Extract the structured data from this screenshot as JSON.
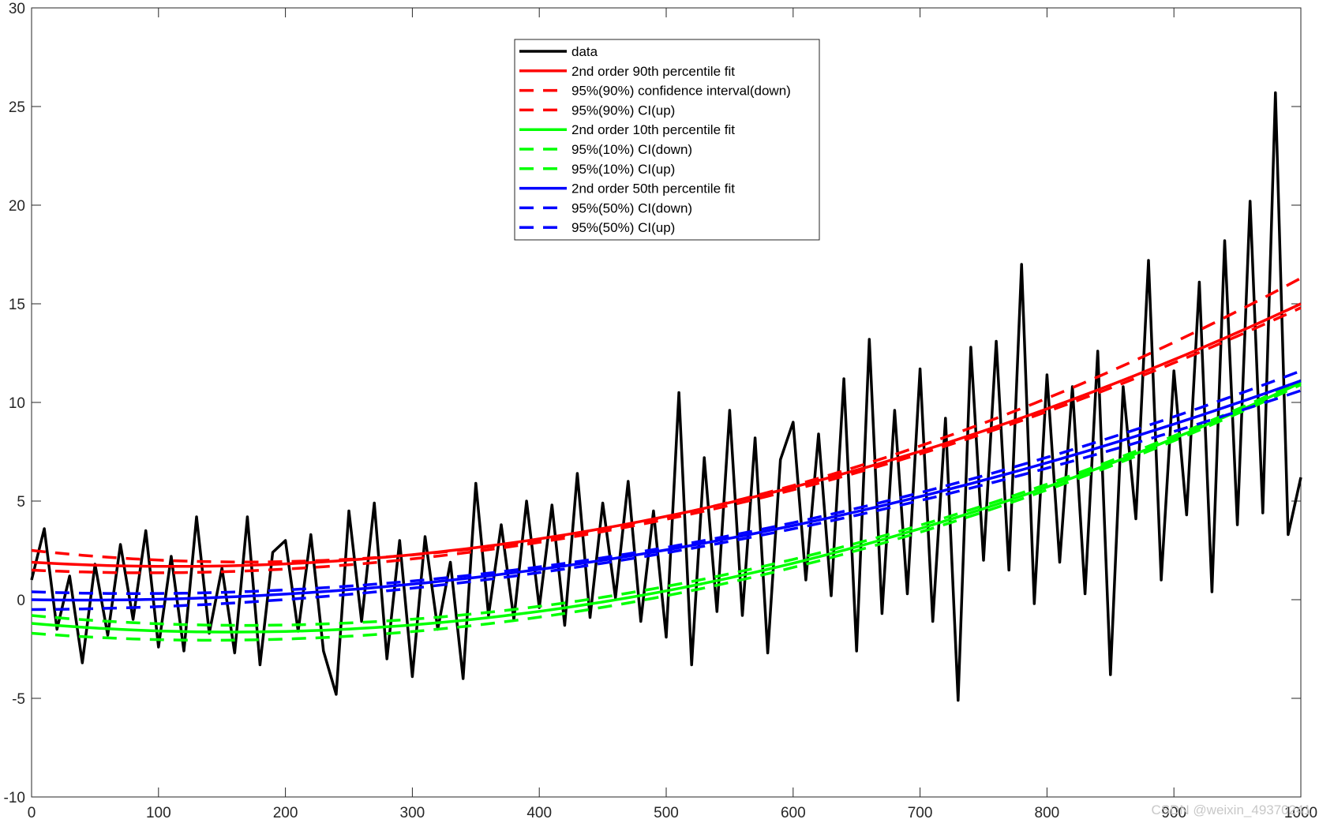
{
  "chart_data": {
    "type": "line",
    "title": "",
    "xlabel": "",
    "ylabel": "",
    "xlim": [
      0,
      1000
    ],
    "ylim": [
      -10,
      30
    ],
    "xticks": [
      0,
      100,
      200,
      300,
      400,
      500,
      600,
      700,
      800,
      900,
      1000
    ],
    "yticks": [
      -10,
      -5,
      0,
      5,
      10,
      15,
      20,
      25,
      30
    ],
    "xtick_labels": [
      "0",
      "100",
      "200",
      "300",
      "400",
      "500",
      "600",
      "700",
      "800",
      "900",
      "1000"
    ],
    "ytick_labels": [
      "-10",
      "-5",
      "0",
      "5",
      "10",
      "15",
      "20",
      "25",
      "30"
    ],
    "grid": false,
    "legend_position": "top-center",
    "data_series": {
      "name": "data",
      "color": "#000000",
      "x": [
        0,
        10,
        20,
        30,
        40,
        50,
        60,
        70,
        80,
        90,
        100,
        110,
        120,
        130,
        140,
        150,
        160,
        170,
        180,
        190,
        200,
        210,
        220,
        230,
        240,
        250,
        260,
        270,
        280,
        290,
        300,
        310,
        320,
        330,
        340,
        350,
        360,
        370,
        380,
        390,
        400,
        410,
        420,
        430,
        440,
        450,
        460,
        470,
        480,
        490,
        500,
        510,
        520,
        530,
        540,
        550,
        560,
        570,
        580,
        590,
        600,
        610,
        620,
        630,
        640,
        650,
        660,
        670,
        680,
        690,
        700,
        710,
        720,
        730,
        740,
        750,
        760,
        770,
        780,
        790,
        800,
        810,
        820,
        830,
        840,
        850,
        860,
        870,
        880,
        890,
        900,
        910,
        920,
        930,
        940,
        950,
        960,
        970,
        980,
        990,
        1000
      ],
      "y": [
        1.0,
        3.6,
        -1.5,
        1.2,
        -3.2,
        1.8,
        -1.8,
        2.8,
        -1.0,
        3.5,
        -2.4,
        2.2,
        -2.6,
        4.2,
        -1.7,
        1.6,
        -2.7,
        4.2,
        -3.3,
        2.4,
        3.0,
        -1.6,
        3.3,
        -2.6,
        -4.8,
        4.5,
        -1.1,
        4.9,
        -3.0,
        3.0,
        -3.9,
        3.2,
        -1.5,
        1.9,
        -4.0,
        5.9,
        -0.8,
        3.8,
        -1.0,
        5.0,
        -0.4,
        4.8,
        -1.3,
        6.4,
        -0.9,
        4.9,
        0.1,
        6.0,
        -1.1,
        4.5,
        -1.9,
        10.5,
        -3.3,
        7.2,
        -0.6,
        9.6,
        -0.8,
        8.2,
        -2.7,
        7.1,
        9.0,
        1.0,
        8.4,
        0.2,
        11.2,
        -2.6,
        13.2,
        -0.7,
        9.6,
        0.3,
        11.7,
        -1.1,
        9.2,
        -5.1,
        12.8,
        2.0,
        13.1,
        1.5,
        17.0,
        -0.2,
        11.4,
        1.9,
        10.8,
        0.3,
        12.6,
        -3.8,
        10.8,
        4.1,
        17.2,
        1.0,
        11.6,
        4.3,
        16.1,
        0.4,
        18.2,
        3.8,
        20.2,
        4.4,
        25.7,
        3.3,
        6.2
      ]
    },
    "fit_series": [
      {
        "name": "2nd order 90th percentile fit",
        "color": "#ff0000",
        "dash": false,
        "coeffs": [
          1.9,
          0,
          15.0
        ]
      },
      {
        "name": "95%(90%) confidence interval(down)",
        "color": "#ff0000",
        "dash": true,
        "coeffs": [
          1.5,
          0,
          14.8
        ]
      },
      {
        "name": "95%(90%) CI(up)",
        "color": "#ff0000",
        "dash": true,
        "coeffs": [
          2.5,
          -1.0,
          16.3
        ]
      },
      {
        "name": "2nd order 10th percentile fit",
        "color": "#00ff00",
        "dash": false,
        "coeffs": [
          -1.2,
          -4.0,
          11.0
        ]
      },
      {
        "name": "95%(10%) CI(down)",
        "color": "#00ff00",
        "dash": true,
        "coeffs": [
          -1.7,
          -4.2,
          10.9
        ]
      },
      {
        "name": "95%(10%) CI(up)",
        "color": "#00ff00",
        "dash": true,
        "coeffs": [
          -0.8,
          -3.8,
          11.1
        ]
      },
      {
        "name": "2nd order 50th percentile fit",
        "color": "#0000ff",
        "dash": false,
        "coeffs": [
          0.0,
          -0.5,
          11.1
        ]
      },
      {
        "name": "95%(50%) CI(down)",
        "color": "#0000ff",
        "dash": true,
        "coeffs": [
          -0.5,
          -0.3,
          10.6
        ]
      },
      {
        "name": "95%(50%) CI(up)",
        "color": "#0000ff",
        "dash": true,
        "coeffs": [
          0.4,
          -0.7,
          11.6
        ]
      }
    ],
    "legend": [
      "data",
      "2nd order 90th percentile fit",
      "95%(90%) confidence interval(down)",
      "95%(90%) CI(up)",
      "2nd order 10th percentile fit",
      "95%(10%) CI(down)",
      "95%(10%) CI(up)",
      "2nd order 50th percentile fit",
      "95%(50%) CI(down)",
      "95%(50%) CI(up)"
    ]
  },
  "watermark": "CSDN @weixin_49370241"
}
